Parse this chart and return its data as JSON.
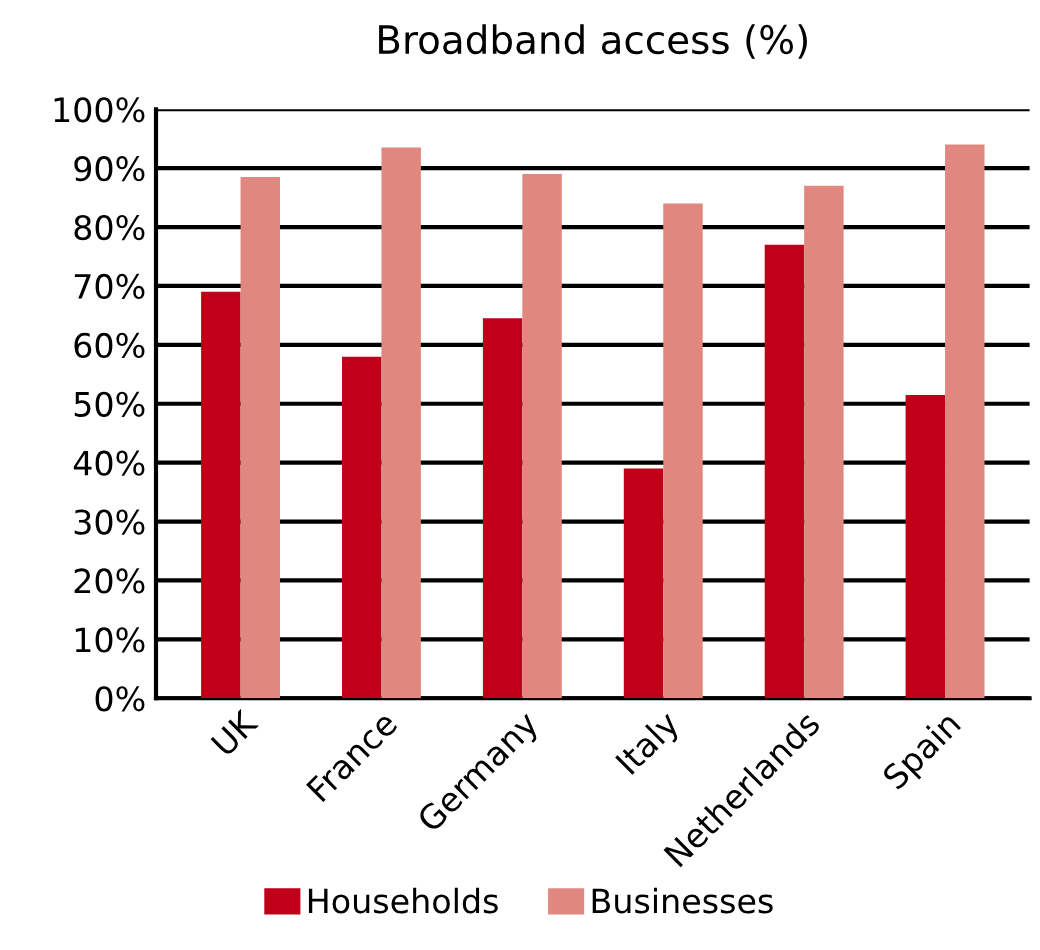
{
  "chart_data": {
    "type": "bar",
    "title": "Broadband access (%)",
    "categories": [
      "UK",
      "France",
      "Germany",
      "Italy",
      "Netherlands",
      "Spain"
    ],
    "series": [
      {
        "name": "Households",
        "color": "#c00018",
        "values": [
          69,
          58,
          64.5,
          39,
          77,
          51.5
        ]
      },
      {
        "name": "Businesses",
        "color": "#e08880",
        "values": [
          88.5,
          93.5,
          89,
          84,
          87,
          94
        ]
      }
    ],
    "ylim": [
      0,
      100
    ],
    "yticks": [
      {
        "value": 0,
        "label": "0%"
      },
      {
        "value": 10,
        "label": "10%"
      },
      {
        "value": 20,
        "label": "20%"
      },
      {
        "value": 30,
        "label": "30%"
      },
      {
        "value": 40,
        "label": "40%"
      },
      {
        "value": 50,
        "label": "50%"
      },
      {
        "value": 60,
        "label": "60%"
      },
      {
        "value": 70,
        "label": "70%"
      },
      {
        "value": 80,
        "label": "80%"
      },
      {
        "value": 90,
        "label": "90%"
      },
      {
        "value": 100,
        "label": "100%"
      }
    ],
    "grid": "y",
    "legend": "bottom"
  }
}
